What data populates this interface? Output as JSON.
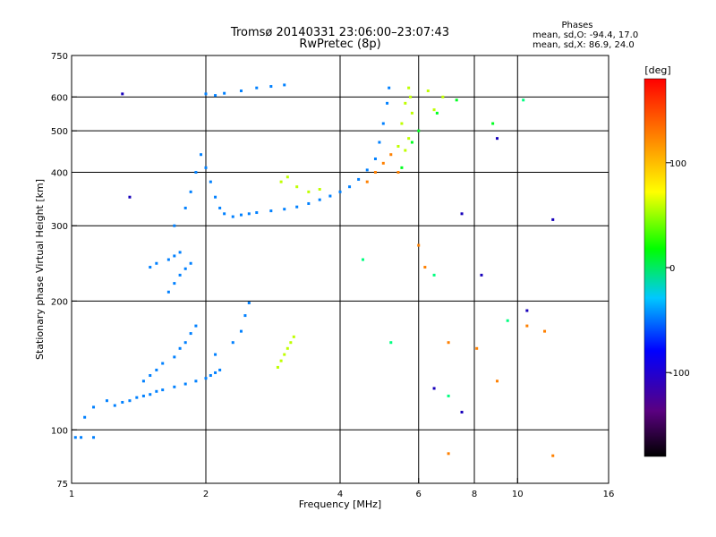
{
  "chart_data": {
    "type": "scatter",
    "title": "Tromsø 20140331 23:06:00–23:07:43",
    "subtitle": "RwPretec (8p)",
    "xlabel": "Frequency [MHz]",
    "ylabel": "Stationary phase Virtual Height [km]",
    "x_scale": "log",
    "y_scale": "log",
    "xlim": [
      1,
      16
    ],
    "ylim": [
      75,
      750
    ],
    "x_ticks": [
      1,
      2,
      4,
      6,
      8,
      10,
      16
    ],
    "y_ticks": [
      75,
      100,
      200,
      300,
      400,
      500,
      600,
      750
    ],
    "x_gridlines": [
      2,
      4,
      6,
      8,
      10
    ],
    "y_gridlines": [
      100,
      200,
      300,
      400,
      500,
      600
    ],
    "grid": true,
    "stats": {
      "header": "Phases",
      "line_o": "mean, sd,O:  -94.4, 17.0",
      "line_x": "mean, sd,X:  86.9, 24.0"
    },
    "colorbar": {
      "label": "[deg]",
      "range": [
        -180,
        180
      ],
      "ticks": [
        100,
        0,
        -100
      ]
    },
    "series": [
      {
        "phase": -100,
        "points": [
          [
            1.02,
            96
          ],
          [
            1.05,
            96
          ],
          [
            1.12,
            96
          ],
          [
            1.07,
            107
          ],
          [
            1.12,
            113
          ],
          [
            1.2,
            117
          ],
          [
            1.25,
            114
          ],
          [
            1.3,
            116
          ],
          [
            1.35,
            117
          ],
          [
            1.4,
            119
          ],
          [
            1.45,
            120
          ],
          [
            1.5,
            121
          ],
          [
            1.55,
            123
          ],
          [
            1.6,
            124
          ],
          [
            1.7,
            126
          ],
          [
            1.8,
            128
          ],
          [
            1.9,
            130
          ],
          [
            2.0,
            132
          ],
          [
            2.05,
            134
          ],
          [
            2.1,
            136
          ],
          [
            2.15,
            138
          ],
          [
            1.45,
            130
          ],
          [
            1.5,
            134
          ],
          [
            1.55,
            138
          ],
          [
            1.6,
            143
          ],
          [
            1.7,
            148
          ],
          [
            1.75,
            155
          ],
          [
            1.8,
            160
          ],
          [
            1.85,
            168
          ],
          [
            1.9,
            175
          ],
          [
            2.1,
            150
          ],
          [
            2.3,
            160
          ],
          [
            2.4,
            170
          ],
          [
            2.45,
            185
          ],
          [
            2.5,
            198
          ],
          [
            1.5,
            240
          ],
          [
            1.55,
            245
          ],
          [
            1.65,
            250
          ],
          [
            1.7,
            255
          ],
          [
            1.75,
            260
          ],
          [
            1.65,
            210
          ],
          [
            1.7,
            220
          ],
          [
            1.75,
            230
          ],
          [
            1.8,
            238
          ],
          [
            1.85,
            245
          ]
        ]
      },
      {
        "phase": -100,
        "points": [
          [
            1.7,
            300
          ],
          [
            1.8,
            330
          ],
          [
            1.85,
            360
          ],
          [
            1.9,
            400
          ],
          [
            1.95,
            440
          ],
          [
            2.0,
            410
          ],
          [
            2.05,
            380
          ],
          [
            2.1,
            350
          ],
          [
            2.15,
            330
          ],
          [
            2.2,
            320
          ],
          [
            2.3,
            315
          ],
          [
            2.4,
            318
          ],
          [
            2.5,
            320
          ],
          [
            2.6,
            322
          ],
          [
            2.8,
            325
          ],
          [
            3.0,
            328
          ],
          [
            3.2,
            332
          ],
          [
            3.4,
            338
          ],
          [
            3.6,
            345
          ],
          [
            3.8,
            352
          ],
          [
            4.0,
            360
          ],
          [
            4.2,
            370
          ],
          [
            4.4,
            385
          ],
          [
            4.6,
            405
          ],
          [
            4.8,
            430
          ],
          [
            4.9,
            470
          ],
          [
            5.0,
            520
          ],
          [
            5.1,
            580
          ],
          [
            5.15,
            630
          ],
          [
            2.0,
            610
          ],
          [
            2.1,
            605
          ],
          [
            2.2,
            612
          ],
          [
            2.4,
            620
          ],
          [
            2.6,
            630
          ],
          [
            2.8,
            635
          ],
          [
            3.0,
            640
          ]
        ]
      },
      {
        "phase": 80,
        "points": [
          [
            2.9,
            140
          ],
          [
            2.95,
            145
          ],
          [
            3.0,
            150
          ],
          [
            3.05,
            155
          ],
          [
            3.1,
            160
          ],
          [
            3.15,
            165
          ],
          [
            2.95,
            380
          ],
          [
            3.05,
            390
          ],
          [
            3.2,
            370
          ],
          [
            3.4,
            360
          ],
          [
            3.6,
            365
          ],
          [
            5.4,
            460
          ],
          [
            5.5,
            520
          ],
          [
            5.6,
            580
          ],
          [
            5.7,
            630
          ],
          [
            5.75,
            600
          ],
          [
            5.8,
            550
          ],
          [
            5.7,
            480
          ],
          [
            5.6,
            450
          ],
          [
            6.3,
            620
          ],
          [
            6.5,
            560
          ],
          [
            6.8,
            600
          ]
        ]
      },
      {
        "phase": 140,
        "points": [
          [
            4.6,
            380
          ],
          [
            4.8,
            400
          ],
          [
            5.0,
            420
          ],
          [
            5.2,
            440
          ],
          [
            5.4,
            400
          ],
          [
            6.0,
            270
          ],
          [
            6.2,
            240
          ],
          [
            7.0,
            160
          ],
          [
            7.0,
            88
          ],
          [
            8.1,
            155
          ],
          [
            9.0,
            130
          ],
          [
            10.5,
            175
          ],
          [
            11.5,
            170
          ],
          [
            12.0,
            87
          ]
        ]
      },
      {
        "phase": 10,
        "points": [
          [
            5.5,
            410
          ],
          [
            5.8,
            470
          ],
          [
            6.0,
            500
          ],
          [
            6.6,
            550
          ],
          [
            7.3,
            590
          ],
          [
            8.8,
            520
          ]
        ]
      },
      {
        "phase": -20,
        "points": [
          [
            4.5,
            250
          ],
          [
            5.2,
            160
          ],
          [
            6.5,
            230
          ],
          [
            7.0,
            120
          ],
          [
            9.5,
            180
          ],
          [
            10.3,
            590
          ]
        ]
      },
      {
        "phase": -150,
        "points": [
          [
            1.3,
            610
          ],
          [
            1.35,
            350
          ],
          [
            7.5,
            320
          ],
          [
            8.3,
            230
          ],
          [
            9.0,
            480
          ],
          [
            10.5,
            190
          ],
          [
            12.0,
            310
          ],
          [
            6.5,
            125
          ],
          [
            7.5,
            110
          ]
        ]
      }
    ]
  }
}
